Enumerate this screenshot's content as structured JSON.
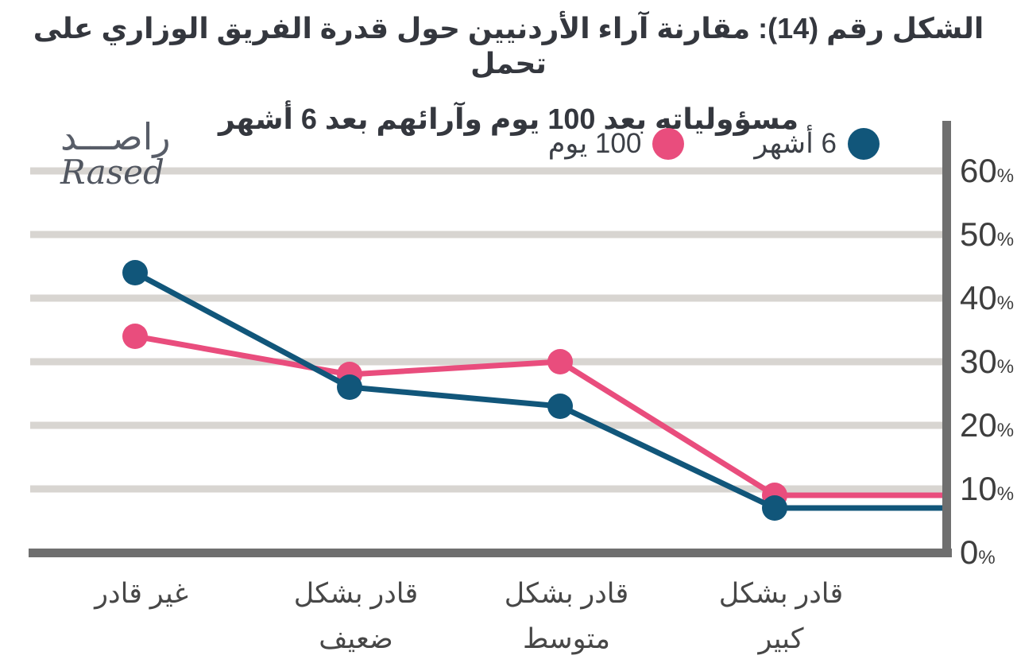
{
  "title": {
    "line1": "الشكل رقم (14): مقارنة آراء الأردنيين حول قدرة الفريق الوزاري على تحمل",
    "line2": "مسؤولياته بعد 100 يوم وآرائهم بعد 6 أشهر"
  },
  "logo": {
    "arabic": "راصـــد",
    "latin": "Rased"
  },
  "legend": {
    "items": [
      {
        "label": "6 أشهر",
        "color": "#11567a"
      },
      {
        "label": "100 يوم",
        "color": "#e94d7d"
      }
    ]
  },
  "chart_data": {
    "type": "line",
    "categories": [
      "غير قادر",
      "قادر بشكل ضعيف",
      "قادر بشكل متوسط",
      "قادر بشكل كبير"
    ],
    "series": [
      {
        "name": "100 يوم",
        "color": "#e94d7d",
        "values": [
          34,
          28,
          30,
          9
        ]
      },
      {
        "name": "6 أشهر",
        "color": "#11567a",
        "values": [
          44,
          26,
          23,
          7
        ]
      }
    ],
    "y_ticks": [
      0,
      10,
      20,
      30,
      40,
      50,
      60
    ],
    "y_tick_suffix": "%",
    "ylim": [
      0,
      65
    ],
    "grid": "horizontal",
    "legend_position": "top-right",
    "axis_side": "right",
    "x_axis_direction": "rtl",
    "colors": {
      "gridline": "#d8d5d1",
      "axis": "#6f6f6f",
      "title_text": "#34373e",
      "tick_text": "#3e3e3e"
    }
  }
}
